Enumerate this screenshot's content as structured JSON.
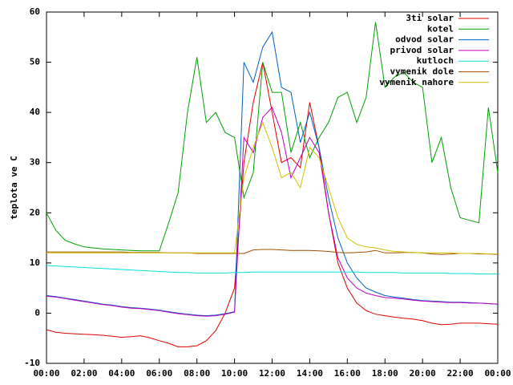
{
  "chart_data": {
    "type": "line",
    "ylabel": "teplota ve C",
    "xlim": [
      0,
      24
    ],
    "xticks": [
      {
        "value": 0,
        "label": "00:00"
      },
      {
        "value": 2,
        "label": "02:00"
      },
      {
        "value": 4,
        "label": "04:00"
      },
      {
        "value": 6,
        "label": "06:00"
      },
      {
        "value": 8,
        "label": "08:00"
      },
      {
        "value": 10,
        "label": "10:00"
      },
      {
        "value": 12,
        "label": "12:00"
      },
      {
        "value": 14,
        "label": "14:00"
      },
      {
        "value": 16,
        "label": "16:00"
      },
      {
        "value": 18,
        "label": "18:00"
      },
      {
        "value": 20,
        "label": "20:00"
      },
      {
        "value": 22,
        "label": "22:00"
      },
      {
        "value": 24,
        "label": "00:00"
      }
    ],
    "ylim": [
      -10,
      60
    ],
    "yticks": [
      -10,
      0,
      10,
      20,
      30,
      40,
      50,
      60
    ],
    "legend": "top-right",
    "x": [
      0,
      0.5,
      1,
      1.5,
      2,
      2.5,
      3,
      3.5,
      4,
      4.5,
      5,
      5.5,
      6,
      6.5,
      7,
      7.5,
      8,
      8.5,
      9,
      9.5,
      10,
      10.5,
      11,
      11.5,
      12,
      12.5,
      13,
      13.5,
      14,
      14.5,
      15,
      15.5,
      16,
      16.5,
      17,
      17.5,
      18,
      18.5,
      19,
      19.5,
      20,
      20.5,
      21,
      21.5,
      22,
      22.5,
      23,
      23.5,
      24
    ],
    "series": [
      {
        "name": "3ti solar",
        "color": "#e00000",
        "values": [
          -3.3,
          -3.8,
          -4,
          -4.1,
          -4.2,
          -4.3,
          -4.4,
          -4.6,
          -4.8,
          -4.7,
          -4.5,
          -4.9,
          -5.5,
          -6,
          -6.7,
          -6.7,
          -6.5,
          -5.5,
          -3.5,
          0,
          5,
          30,
          42,
          50,
          40,
          30,
          31,
          29,
          42,
          33,
          20,
          10,
          5,
          2,
          0.5,
          -0.2,
          -0.5,
          -0.8,
          -1,
          -1.2,
          -1.5,
          -2,
          -2.3,
          -2.2,
          -2,
          -2,
          -2,
          -2.1,
          -2.2
        ]
      },
      {
        "name": "kotel",
        "color": "#00a000",
        "values": [
          20,
          16.5,
          14.5,
          13.8,
          13.2,
          13,
          12.8,
          12.7,
          12.6,
          12.5,
          12.4,
          12.4,
          12.4,
          18,
          24,
          40,
          51,
          38,
          40,
          36,
          35,
          23,
          28,
          50,
          44,
          44,
          32,
          38,
          31,
          35,
          38,
          43,
          44,
          38,
          43,
          58,
          45,
          47,
          48,
          46,
          45,
          30,
          35,
          25,
          19,
          18.5,
          18,
          41,
          28
        ]
      },
      {
        "name": "odvod solar",
        "color": "#0060c0",
        "values": [
          3.5,
          3.3,
          3,
          2.7,
          2.4,
          2.1,
          1.8,
          1.6,
          1.3,
          1.1,
          1,
          0.8,
          0.6,
          0.3,
          0,
          -0.2,
          -0.4,
          -0.5,
          -0.4,
          -0.1,
          0.3,
          50,
          46,
          53,
          56,
          45,
          44,
          34,
          40,
          33,
          23,
          15,
          10,
          7,
          5,
          4.2,
          3.5,
          3.2,
          3,
          2.7,
          2.5,
          2.4,
          2.3,
          2.2,
          2.2,
          2.1,
          2,
          1.9,
          1.8
        ]
      },
      {
        "name": "privod solar",
        "color": "#c000c0",
        "values": [
          3.4,
          3.2,
          2.9,
          2.6,
          2.3,
          2,
          1.7,
          1.5,
          1.2,
          1,
          0.9,
          0.7,
          0.5,
          0.2,
          -0.1,
          -0.3,
          -0.5,
          -0.6,
          -0.5,
          -0.2,
          0.2,
          35,
          32,
          39,
          41,
          36,
          27,
          31,
          35,
          32,
          20,
          11,
          7,
          5,
          4,
          3.5,
          3.1,
          3,
          2.8,
          2.6,
          2.4,
          2.3,
          2.2,
          2.1,
          2.1,
          2,
          2,
          1.9,
          1.8
        ]
      },
      {
        "name": "kutloch",
        "color": "#00e0e0",
        "values": [
          9.5,
          9.4,
          9.3,
          9.2,
          9.1,
          9,
          8.9,
          8.8,
          8.7,
          8.6,
          8.5,
          8.4,
          8.3,
          8.2,
          8.1,
          8.1,
          8,
          8,
          8,
          8,
          8.1,
          8.1,
          8.2,
          8.2,
          8.2,
          8.2,
          8.2,
          8.2,
          8.2,
          8.2,
          8.2,
          8.2,
          8.2,
          8.2,
          8.1,
          8.1,
          8.1,
          8.1,
          8,
          8,
          8,
          8,
          8,
          7.9,
          7.9,
          7.9,
          7.8,
          7.8,
          7.8
        ]
      },
      {
        "name": "vymenik dole",
        "color": "#a05000",
        "values": [
          12.2,
          12.2,
          12.2,
          12.2,
          12.2,
          12.2,
          12.2,
          12.2,
          12.2,
          12.1,
          12.1,
          12.1,
          12.1,
          12,
          12,
          12,
          11.9,
          11.9,
          11.9,
          11.9,
          11.9,
          11.9,
          12.6,
          12.7,
          12.7,
          12.6,
          12.5,
          12.5,
          12.5,
          12.4,
          12.3,
          12.1,
          12,
          12.1,
          12.2,
          12.5,
          12,
          12,
          12.1,
          12.1,
          12,
          11.8,
          11.7,
          11.8,
          11.9,
          11.9,
          11.8,
          11.8,
          11.7
        ]
      },
      {
        "name": "vymenik nahore",
        "color": "#d0c000",
        "values": [
          12,
          12,
          12,
          12,
          12,
          12,
          12,
          12,
          12,
          12,
          12,
          12,
          12,
          12,
          12,
          12,
          12,
          12,
          12,
          12,
          12,
          27,
          33,
          38,
          33,
          27,
          28,
          25,
          33,
          31,
          25,
          19,
          15,
          13.7,
          13.2,
          13,
          12.6,
          12.3,
          12.2,
          12.1,
          12,
          12,
          12,
          12,
          11.9,
          11.9,
          11.9,
          11.8,
          11.8
        ]
      }
    ]
  }
}
